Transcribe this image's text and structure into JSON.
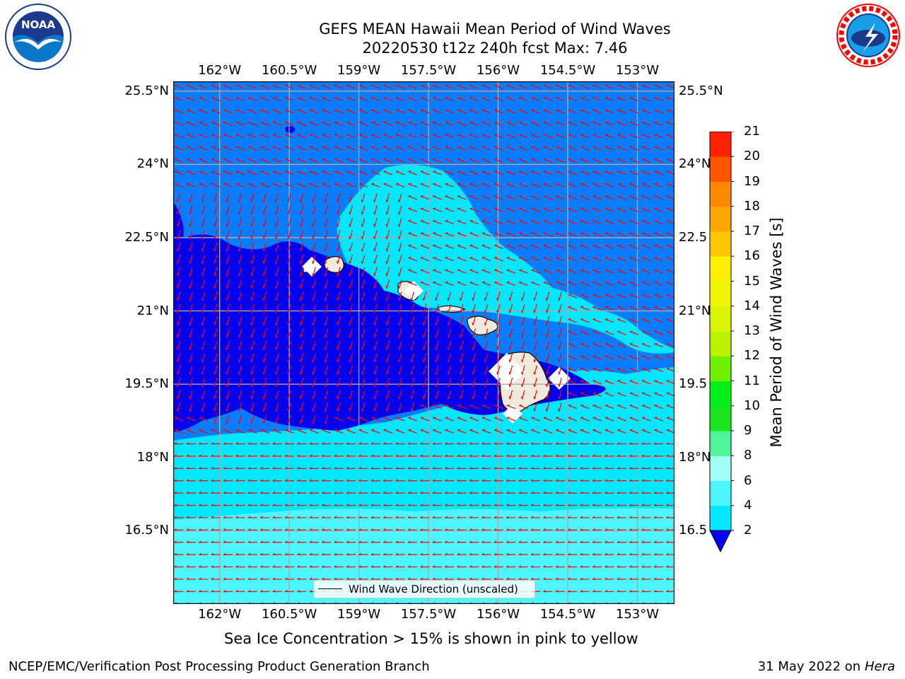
{
  "title": {
    "line1": "GEFS MEAN Hawaii Mean Period of Wind Waves",
    "line2": "20220530 t12z 240h fcst   Max: 7.46"
  },
  "map": {
    "lon_range": [
      -163,
      -152.2
    ],
    "lat_range": [
      15,
      25.7
    ],
    "lon_ticks": [
      "162°W",
      "160.5°W",
      "159°W",
      "157.5°W",
      "156°W",
      "154.5°W",
      "153°W"
    ],
    "lat_ticks": [
      "25.5°N",
      "24°N",
      "22.5°N",
      "21°N",
      "19.5°N",
      "18°N",
      "16.5°N"
    ],
    "right_lat_ticks": [
      "25.5°N",
      "24°N",
      "22.5",
      "21°N",
      "19.5",
      "18°N",
      "16.5"
    ],
    "vector_color": "#ff0000",
    "land_color": "#efebdc"
  },
  "colorbar": {
    "label": "Mean Period of Wind Waves [s]",
    "levels": [
      "2",
      "4",
      "6",
      "8",
      "9",
      "10",
      "11",
      "12",
      "13",
      "14",
      "15",
      "16",
      "17",
      "18",
      "19",
      "20",
      "21"
    ],
    "colors": [
      "#0a7dff",
      "#00e8ff",
      "#4df5ff",
      "#a0fff6",
      "#50f59a",
      "#19e61e",
      "#00f01a",
      "#6ef000",
      "#baf200",
      "#d9f500",
      "#f2f500",
      "#fff000",
      "#ffc800",
      "#ffa500",
      "#ff8700",
      "#ff5500",
      "#ff2200",
      "#ff0000"
    ],
    "extend_color": "#0000ff"
  },
  "legend": {
    "label": "Wind Wave Direction (unscaled)"
  },
  "notes": {
    "sea_ice": "Sea Ice Concentration > 15% is shown in pink to yellow",
    "credit": "NCEP/EMC/Verification Post Processing Product Generation Branch",
    "date": "31 May 2022 on",
    "machine": "Hera"
  },
  "logos": {
    "noaa": "NOAA",
    "nws_ring": "NATIONAL WEATHER SERVICE"
  }
}
